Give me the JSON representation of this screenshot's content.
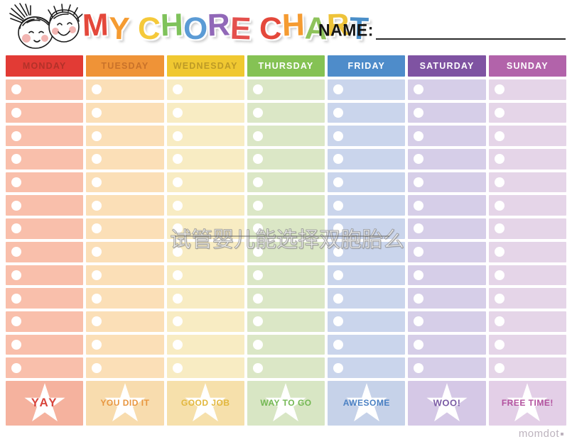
{
  "header": {
    "title_letters": [
      {
        "ch": "M",
        "color": "#e4483b"
      },
      {
        "ch": "Y",
        "color": "#f59b31"
      },
      {
        "ch": " "
      },
      {
        "ch": "C",
        "color": "#f5c93a"
      },
      {
        "ch": "H",
        "color": "#7fc25b"
      },
      {
        "ch": "O",
        "color": "#5b9bd5"
      },
      {
        "ch": "R",
        "color": "#9168b8"
      },
      {
        "ch": "E",
        "color": "#e4504d"
      },
      {
        "ch": " "
      },
      {
        "ch": "C",
        "color": "#e4483b"
      },
      {
        "ch": "H",
        "color": "#f59b31"
      },
      {
        "ch": "A",
        "color": "#8ec35b"
      },
      {
        "ch": "R",
        "color": "#eec33a"
      },
      {
        "ch": "T",
        "color": "#4b8fc9"
      }
    ],
    "name_label": "NAME:",
    "name_value": ""
  },
  "chart": {
    "rows": 13,
    "days": [
      {
        "label": "MONDAY",
        "header_bg": "#e23b35",
        "header_text": "#b23129",
        "cell_bg": "#f9bfab",
        "star_bg": "#f5b29e",
        "award": "YAY",
        "award_color": "#d8453c"
      },
      {
        "label": "TUESDAY",
        "header_bg": "#ef9337",
        "header_text": "#c9722a",
        "cell_bg": "#fbdfb7",
        "star_bg": "#f8dcae",
        "award": "YOU DID IT",
        "award_color": "#e8963f"
      },
      {
        "label": "WEDNESDAY",
        "header_bg": "#f0c831",
        "header_text": "#bd9a26",
        "cell_bg": "#f8ecc3",
        "star_bg": "#f6e0ab",
        "award": "GOOD JOB",
        "award_color": "#e2b73d"
      },
      {
        "label": "THURSDAY",
        "header_bg": "#85c254",
        "header_text": "#ffffff",
        "cell_bg": "#dbe7c6",
        "star_bg": "#d8e6c4",
        "award": "WAY TO GO",
        "award_color": "#74b854"
      },
      {
        "label": "FRIDAY",
        "header_bg": "#4e8cca",
        "header_text": "#ffffff",
        "cell_bg": "#cad5ec",
        "star_bg": "#c6d2e9",
        "award": "AWESOME",
        "award_color": "#4a80c3"
      },
      {
        "label": "SATURDAY",
        "header_bg": "#7f53a2",
        "header_text": "#ffffff",
        "cell_bg": "#d6cee8",
        "star_bg": "#d5c8e6",
        "award": "WOO!",
        "award_color": "#7b5ca6"
      },
      {
        "label": "SUNDAY",
        "header_bg": "#b263aa",
        "header_text": "#ffffff",
        "cell_bg": "#e5d5e8",
        "star_bg": "#e3cfe7",
        "award": "FREE TIME!",
        "award_color": "#b2519e"
      }
    ]
  },
  "watermark": {
    "text": "试管婴儿能选择双胞胎么"
  },
  "footer": {
    "brand": "momdot"
  }
}
